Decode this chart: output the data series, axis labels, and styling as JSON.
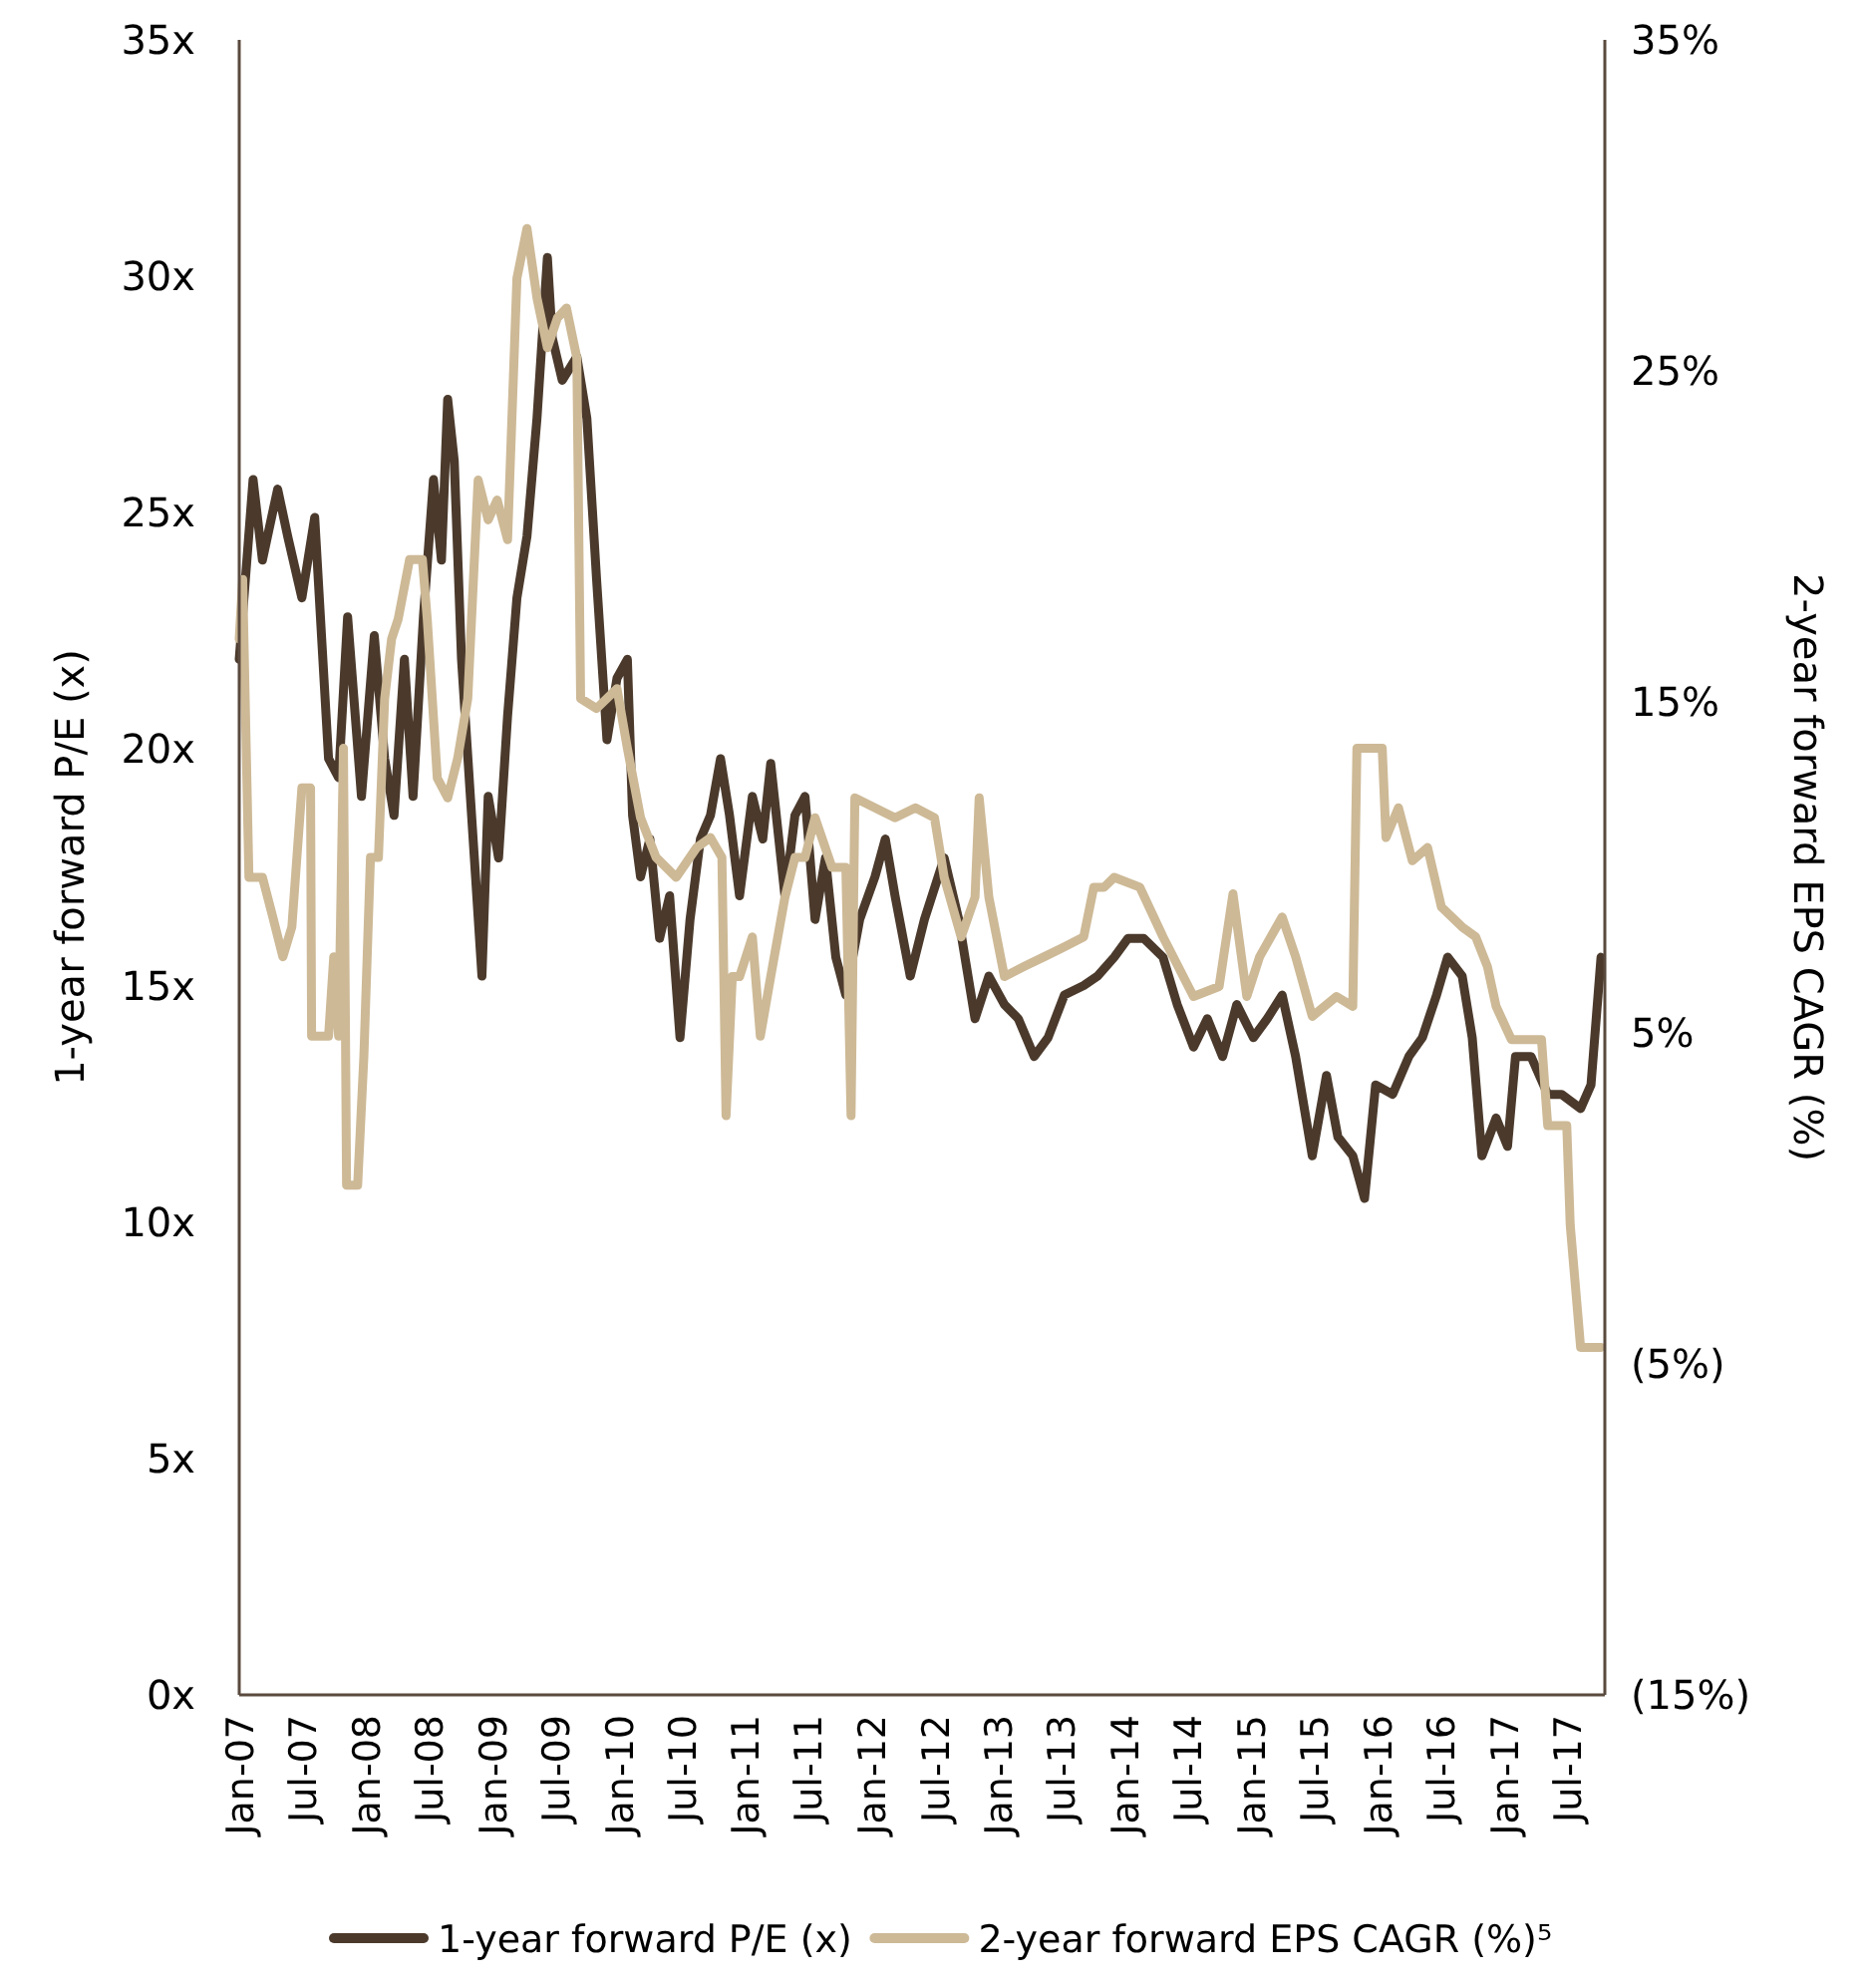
{
  "chart_data": {
    "type": "line",
    "xlabel": null,
    "ylabel": "1-year forward P/E (x)",
    "y2label": "2-year forward EPS CAGR (%)",
    "legend": "bottom",
    "line_style": "solid",
    "marker": "none",
    "grid": false,
    "xlim": [
      "2007-01-01",
      "2017-10-19"
    ],
    "xticks": [
      {
        "value": "2007-01",
        "label": "Jan-07"
      },
      {
        "value": "2007-07",
        "label": "Jul-07"
      },
      {
        "value": "2008-01",
        "label": "Jan-08"
      },
      {
        "value": "2008-07",
        "label": "Jul-08"
      },
      {
        "value": "2009-01",
        "label": "Jan-09"
      },
      {
        "value": "2009-07",
        "label": "Jul-09"
      },
      {
        "value": "2010-01",
        "label": "Jan-10"
      },
      {
        "value": "2010-07",
        "label": "Jul-10"
      },
      {
        "value": "2011-01",
        "label": "Jan-11"
      },
      {
        "value": "2011-07",
        "label": "Jul-11"
      },
      {
        "value": "2012-01",
        "label": "Jan-12"
      },
      {
        "value": "2012-07",
        "label": "Jul-12"
      },
      {
        "value": "2013-01",
        "label": "Jan-13"
      },
      {
        "value": "2013-07",
        "label": "Jul-13"
      },
      {
        "value": "2014-01",
        "label": "Jan-14"
      },
      {
        "value": "2014-07",
        "label": "Jul-14"
      },
      {
        "value": "2015-01",
        "label": "Jan-15"
      },
      {
        "value": "2015-07",
        "label": "Jul-15"
      },
      {
        "value": "2016-01",
        "label": "Jan-16"
      },
      {
        "value": "2016-07",
        "label": "Jul-16"
      },
      {
        "value": "2017-01",
        "label": "Jan-17"
      },
      {
        "value": "2017-07",
        "label": "Jul-17"
      }
    ],
    "ylim": [
      0,
      35
    ],
    "yticks": [
      {
        "value": 0,
        "label": "0x"
      },
      {
        "value": 5,
        "label": "5x"
      },
      {
        "value": 10,
        "label": "10x"
      },
      {
        "value": 15,
        "label": "15x"
      },
      {
        "value": 20,
        "label": "20x"
      },
      {
        "value": 25,
        "label": "25x"
      },
      {
        "value": 30,
        "label": "30x"
      },
      {
        "value": 35,
        "label": "35x"
      }
    ],
    "y2lim": [
      -15,
      35
    ],
    "y2ticks": [
      {
        "value": -15,
        "label": "(15%)"
      },
      {
        "value": -5,
        "label": "(5%)"
      },
      {
        "value": 5,
        "label": "5%"
      },
      {
        "value": 15,
        "label": "15%"
      },
      {
        "value": 25,
        "label": "25%"
      },
      {
        "value": 35,
        "label": "35%"
      }
    ],
    "series": [
      {
        "name": "1-year forward P/E (x)",
        "color": "#4b3a2c",
        "x": [
          "2007-01-01",
          "2007-02-10",
          "2007-03-09",
          "2007-04-22",
          "2007-05-21",
          "2007-07-01",
          "2007-08-07",
          "2007-09-16",
          "2007-10-15",
          "2007-11-10",
          "2007-12-20",
          "2008-01-26",
          "2008-02-25",
          "2008-03-23",
          "2008-04-22",
          "2008-05-17",
          "2008-06-16",
          "2008-07-15",
          "2008-08-07",
          "2008-08-25",
          "2008-09-13",
          "2008-10-04",
          "2008-11-10",
          "2008-12-02",
          "2008-12-20",
          "2009-01-19",
          "2009-02-14",
          "2009-03-13",
          "2009-04-11",
          "2009-05-10",
          "2009-06-09",
          "2009-06-23",
          "2009-07-22",
          "2009-09-02",
          "2009-10-01",
          "2009-10-29",
          "2009-11-28",
          "2009-12-27",
          "2010-01-26",
          "2010-02-10",
          "2010-03-05",
          "2010-04-01",
          "2010-04-29",
          "2010-05-28",
          "2010-06-27",
          "2010-07-26",
          "2010-08-25",
          "2010-09-23",
          "2010-10-22",
          "2010-11-17",
          "2010-12-16",
          "2011-01-22",
          "2011-02-21",
          "2011-03-16",
          "2011-04-26",
          "2011-05-25",
          "2011-06-23",
          "2011-07-22",
          "2011-08-21",
          "2011-09-20",
          "2011-10-19",
          "2011-11-28",
          "2012-01-11",
          "2012-02-10",
          "2012-03-09",
          "2012-04-22",
          "2012-06-02",
          "2012-07-29",
          "2012-09-09",
          "2012-10-26",
          "2012-12-05",
          "2013-01-19",
          "2013-02-28",
          "2013-04-15",
          "2013-05-25",
          "2013-07-11",
          "2013-09-05",
          "2013-10-15",
          "2013-12-02",
          "2014-01-11",
          "2014-02-25",
          "2014-04-22",
          "2014-06-02",
          "2014-07-19",
          "2014-08-28",
          "2014-10-11",
          "2014-11-21",
          "2015-01-08",
          "2015-02-17",
          "2015-04-01",
          "2015-05-10",
          "2015-06-27",
          "2015-08-07",
          "2015-09-09",
          "2015-10-22",
          "2015-11-25",
          "2015-12-27",
          "2016-02-14",
          "2016-04-01",
          "2016-05-10",
          "2016-06-20",
          "2016-07-22",
          "2016-09-02",
          "2016-10-01",
          "2016-10-29",
          "2016-12-09",
          "2017-01-11",
          "2017-02-03",
          "2017-03-20",
          "2017-05-07",
          "2017-06-16",
          "2017-08-10",
          "2017-09-09",
          "2017-10-08"
        ],
        "values": [
          21.9,
          25.7,
          24,
          25.5,
          24.5,
          23.2,
          24.9,
          19.8,
          19.4,
          22.8,
          19,
          22.4,
          19.8,
          18.6,
          21.9,
          19,
          22.8,
          25.7,
          24,
          27.4,
          26.1,
          21.9,
          17.7,
          15.2,
          19,
          17.7,
          20.7,
          23.2,
          24.5,
          27,
          30.4,
          28.7,
          27.8,
          28.3,
          27,
          23.6,
          20.2,
          21.5,
          21.9,
          18.6,
          17.3,
          18.1,
          16,
          16.9,
          13.9,
          16.4,
          18.1,
          18.6,
          19.8,
          18.6,
          16.9,
          19,
          18.1,
          19.7,
          16.9,
          18.6,
          19,
          16.4,
          17.7,
          15.6,
          14.8,
          16.4,
          17.3,
          18.1,
          16.9,
          15.2,
          16.4,
          17.7,
          16.4,
          14.3,
          15.2,
          14.6,
          14.3,
          13.5,
          13.9,
          14.8,
          15,
          15.2,
          15.6,
          16,
          16,
          15.6,
          14.6,
          13.7,
          14.3,
          13.5,
          14.6,
          13.9,
          14.3,
          14.8,
          13.5,
          11.4,
          13.1,
          11.8,
          11.4,
          10.5,
          12.9,
          12.7,
          13.5,
          13.9,
          14.8,
          15.6,
          15.2,
          13.9,
          11.4,
          12.2,
          11.6,
          13.5,
          13.5,
          12.7,
          12.7,
          12.4,
          12.9,
          15.6
        ]
      },
      {
        "name": "2-year forward EPS CAGR (%)⁵",
        "color": "#cdb996",
        "axis": "y2",
        "x": [
          "2007-01-01",
          "2007-01-11",
          "2007-01-29",
          "2007-03-09",
          "2007-04-08",
          "2007-05-07",
          "2007-06-02",
          "2007-07-01",
          "2007-07-26",
          "2007-07-29",
          "2007-09-16",
          "2007-10-01",
          "2007-10-15",
          "2007-10-29",
          "2007-11-07",
          "2007-12-09",
          "2007-12-27",
          "2008-01-15",
          "2008-02-07",
          "2008-02-25",
          "2008-03-16",
          "2008-04-04",
          "2008-05-07",
          "2008-06-13",
          "2008-06-27",
          "2008-07-26",
          "2008-08-25",
          "2008-09-23",
          "2008-10-22",
          "2008-11-21",
          "2008-12-20",
          "2009-01-15",
          "2009-02-14",
          "2009-03-13",
          "2009-04-11",
          "2009-05-10",
          "2009-06-09",
          "2009-07-08",
          "2009-08-03",
          "2009-09-02",
          "2009-09-13",
          "2009-10-29",
          "2009-12-27",
          "2010-01-26",
          "2010-03-05",
          "2010-04-19",
          "2010-06-16",
          "2010-08-14",
          "2010-09-23",
          "2010-10-26",
          "2010-11-07",
          "2010-11-25",
          "2010-12-16",
          "2011-01-22",
          "2011-02-14",
          "2011-03-16",
          "2011-04-26",
          "2011-05-25",
          "2011-06-23",
          "2011-07-22",
          "2011-09-09",
          "2011-10-19",
          "2011-11-03",
          "2011-11-14",
          "2012-01-11",
          "2012-03-09",
          "2012-05-07",
          "2012-07-01",
          "2012-07-29",
          "2012-09-16",
          "2012-10-26",
          "2012-11-07",
          "2012-12-05",
          "2013-01-19",
          "2013-03-16",
          "2013-05-14",
          "2013-07-11",
          "2013-09-05",
          "2013-10-04",
          "2013-11-03",
          "2013-12-02",
          "2014-02-14",
          "2014-04-22",
          "2014-07-19",
          "2014-10-01",
          "2014-11-10",
          "2014-12-20",
          "2015-01-26",
          "2015-04-01",
          "2015-05-10",
          "2015-06-27",
          "2015-09-05",
          "2015-10-22",
          "2015-11-03",
          "2016-01-15",
          "2016-01-26",
          "2016-03-02",
          "2016-04-11",
          "2016-05-25",
          "2016-07-04",
          "2016-09-02",
          "2016-10-11",
          "2016-11-14",
          "2016-12-09",
          "2017-01-22",
          "2017-04-19",
          "2017-05-07",
          "2017-07-01",
          "2017-07-11",
          "2017-08-10",
          "2017-10-08"
        ],
        "values": [
          16.9,
          18.7,
          9.7,
          9.7,
          8.5,
          7.3,
          8.2,
          12.4,
          12.4,
          4.9,
          4.9,
          7.3,
          4.9,
          13.6,
          0.4,
          0.4,
          4.3,
          10.3,
          10.3,
          15.1,
          16.9,
          17.5,
          19.3,
          19.3,
          17.5,
          12.7,
          12.1,
          13.3,
          15.1,
          21.7,
          20.5,
          21.1,
          19.9,
          27.8,
          29.3,
          27.2,
          25.7,
          26.6,
          26.9,
          25.4,
          15.1,
          14.8,
          15.4,
          13.6,
          11.5,
          10.3,
          9.7,
          10.6,
          10.9,
          10.3,
          2.5,
          6.7,
          6.7,
          7.9,
          4.9,
          6.7,
          9.1,
          10.3,
          10.3,
          11.5,
          10,
          10,
          2.5,
          12.1,
          11.8,
          11.5,
          11.8,
          11.5,
          9.7,
          7.9,
          9.1,
          12.1,
          9.1,
          6.7,
          7,
          7.3,
          7.6,
          7.9,
          9.4,
          9.4,
          9.7,
          9.4,
          7.9,
          6.1,
          6.4,
          9.2,
          6.1,
          7.3,
          8.5,
          7.3,
          5.5,
          6.1,
          5.8,
          13.6,
          13.6,
          10.9,
          11.8,
          10.2,
          10.6,
          8.8,
          8.2,
          7.9,
          7,
          5.8,
          4.8,
          4.8,
          2.2,
          2.2,
          -0.8,
          -4.5,
          -4.5
        ]
      }
    ]
  }
}
